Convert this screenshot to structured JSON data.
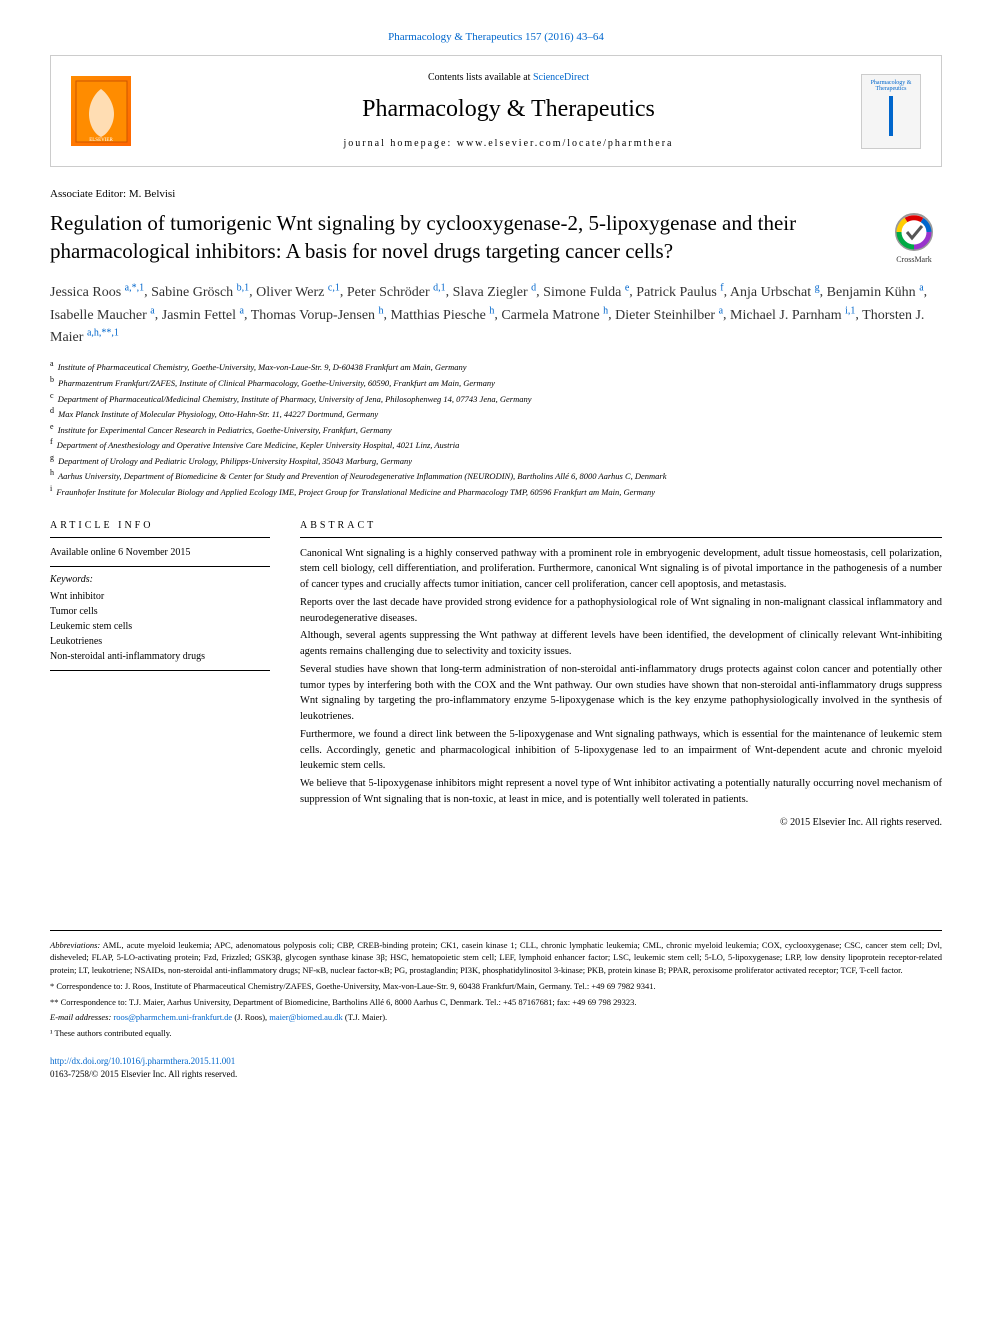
{
  "header": {
    "citation": "Pharmacology & Therapeutics 157 (2016) 43–64",
    "contents_prefix": "Contents lists available at ",
    "contents_link": "ScienceDirect",
    "journal_name": "Pharmacology & Therapeutics",
    "homepage_label": "journal homepage: www.elsevier.com/locate/pharmthera",
    "cover_text": "Pharmacology & Therapeutics"
  },
  "article": {
    "associate_editor": "Associate Editor: M. Belvisi",
    "title": "Regulation of tumorigenic Wnt signaling by cyclooxygenase-2, 5-lipoxygenase and their pharmacological inhibitors: A basis for novel drugs targeting cancer cells?",
    "crossmark_label": "CrossMark"
  },
  "authors": [
    {
      "name": "Jessica Roos",
      "sup": "a,*,1"
    },
    {
      "name": "Sabine Grösch",
      "sup": "b,1"
    },
    {
      "name": "Oliver Werz",
      "sup": "c,1"
    },
    {
      "name": "Peter Schröder",
      "sup": "d,1"
    },
    {
      "name": "Slava Ziegler",
      "sup": "d"
    },
    {
      "name": "Simone Fulda",
      "sup": "e"
    },
    {
      "name": "Patrick Paulus",
      "sup": "f"
    },
    {
      "name": "Anja Urbschat",
      "sup": "g"
    },
    {
      "name": "Benjamin Kühn",
      "sup": "a"
    },
    {
      "name": "Isabelle Maucher",
      "sup": "a"
    },
    {
      "name": "Jasmin Fettel",
      "sup": "a"
    },
    {
      "name": "Thomas Vorup-Jensen",
      "sup": "h"
    },
    {
      "name": "Matthias Piesche",
      "sup": "h"
    },
    {
      "name": "Carmela Matrone",
      "sup": "h"
    },
    {
      "name": "Dieter Steinhilber",
      "sup": "a"
    },
    {
      "name": "Michael J. Parnham",
      "sup": "i,1"
    },
    {
      "name": "Thorsten J. Maier",
      "sup": "a,h,**,1"
    }
  ],
  "affiliations": [
    {
      "key": "a",
      "text": "Institute of Pharmaceutical Chemistry, Goethe-University, Max-von-Laue-Str. 9, D-60438 Frankfurt am Main, Germany"
    },
    {
      "key": "b",
      "text": "Pharmazentrum Frankfurt/ZAFES, Institute of Clinical Pharmacology, Goethe-University, 60590, Frankfurt am Main, Germany"
    },
    {
      "key": "c",
      "text": "Department of Pharmaceutical/Medicinal Chemistry, Institute of Pharmacy, University of Jena, Philosophenweg 14, 07743 Jena, Germany"
    },
    {
      "key": "d",
      "text": "Max Planck Institute of Molecular Physiology, Otto-Hahn-Str. 11, 44227 Dortmund, Germany"
    },
    {
      "key": "e",
      "text": "Institute for Experimental Cancer Research in Pediatrics, Goethe-University, Frankfurt, Germany"
    },
    {
      "key": "f",
      "text": "Department of Anesthesiology and Operative Intensive Care Medicine, Kepler University Hospital, 4021 Linz, Austria"
    },
    {
      "key": "g",
      "text": "Department of Urology and Pediatric Urology, Philipps-University Hospital, 35043 Marburg, Germany"
    },
    {
      "key": "h",
      "text": "Aarhus University, Department of Biomedicine & Center for Study and Prevention of Neurodegenerative Inflammation (NEURODIN), Bartholins Allé 6, 8000 Aarhus C, Denmark"
    },
    {
      "key": "i",
      "text": "Fraunhofer Institute for Molecular Biology and Applied Ecology IME, Project Group for Translational Medicine and Pharmacology TMP, 60596 Frankfurt am Main, Germany"
    }
  ],
  "info": {
    "heading": "ARTICLE INFO",
    "available": "Available online 6 November 2015",
    "keywords_label": "Keywords:",
    "keywords": [
      "Wnt inhibitor",
      "Tumor cells",
      "Leukemic stem cells",
      "Leukotrienes",
      "Non-steroidal anti-inflammatory drugs"
    ]
  },
  "abstract": {
    "heading": "ABSTRACT",
    "paragraphs": [
      "Canonical Wnt signaling is a highly conserved pathway with a prominent role in embryogenic development, adult tissue homeostasis, cell polarization, stem cell biology, cell differentiation, and proliferation. Furthermore, canonical Wnt signaling is of pivotal importance in the pathogenesis of a number of cancer types and crucially affects tumor initiation, cancer cell proliferation, cancer cell apoptosis, and metastasis.",
      "Reports over the last decade have provided strong evidence for a pathophysiological role of Wnt signaling in non-malignant classical inflammatory and neurodegenerative diseases.",
      "Although, several agents suppressing the Wnt pathway at different levels have been identified, the development of clinically relevant Wnt-inhibiting agents remains challenging due to selectivity and toxicity issues.",
      "Several studies have shown that long-term administration of non-steroidal anti-inflammatory drugs protects against colon cancer and potentially other tumor types by interfering both with the COX and the Wnt pathway. Our own studies have shown that non-steroidal anti-inflammatory drugs suppress Wnt signaling by targeting the pro-inflammatory enzyme 5-lipoxygenase which is the key enzyme pathophysiologically involved in the synthesis of leukotrienes.",
      "Furthermore, we found a direct link between the 5-lipoxygenase and Wnt signaling pathways, which is essential for the maintenance of leukemic stem cells. Accordingly, genetic and pharmacological inhibition of 5-lipoxygenase led to an impairment of Wnt-dependent acute and chronic myeloid leukemic stem cells.",
      "We believe that 5-lipoxygenase inhibitors might represent a novel type of Wnt inhibitor activating a potentially naturally occurring novel mechanism of suppression of Wnt signaling that is non-toxic, at least in mice, and is potentially well tolerated in patients."
    ],
    "copyright": "© 2015 Elsevier Inc. All rights reserved."
  },
  "footer": {
    "abbrev_label": "Abbreviations:",
    "abbrev_text": " AML, acute myeloid leukemia; APC, adenomatous polyposis coli; CBP, CREB-binding protein; CK1, casein kinase 1; CLL, chronic lymphatic leukemia; CML, chronic myeloid leukemia; COX, cyclooxygenase; CSC, cancer stem cell; Dvl, disheveled; FLAP, 5-LO-activating protein; Fzd, Frizzled; GSK3β, glycogen synthase kinase 3β; HSC, hematopoietic stem cell; LEF, lymphoid enhancer factor; LSC, leukemic stem cell; 5-LO, 5-lipoxygenase; LRP, low density lipoprotein receptor-related protein; LT, leukotriene; NSAIDs, non-steroidal anti-inflammatory drugs; NF-κB, nuclear factor-κB; PG, prostaglandin; PI3K, phosphatidylinositol 3-kinase; PKB, protein kinase B; PPAR, peroxisome proliferator activated receptor; TCF, T-cell factor.",
    "corr1": "* Correspondence to: J. Roos, Institute of Pharmaceutical Chemistry/ZAFES, Goethe-University, Max-von-Laue-Str. 9, 60438 Frankfurt/Main, Germany. Tel.: +49 69 7982 9341.",
    "corr2": "** Correspondence to: T.J. Maier, Aarhus University, Department of Biomedicine, Bartholins Allé 6, 8000 Aarhus C, Denmark. Tel.: +45 87167681; fax: +49 69 798 29323.",
    "email_label": "E-mail addresses: ",
    "email1": "roos@pharmchem.uni-frankfurt.de",
    "email1_name": " (J. Roos), ",
    "email2": "maier@biomed.au.dk",
    "email2_name": " (T.J. Maier).",
    "contributed": "¹ These authors contributed equally.",
    "doi": "http://dx.doi.org/10.1016/j.pharmthera.2015.11.001",
    "issn": "0163-7258/© 2015 Elsevier Inc. All rights reserved."
  },
  "colors": {
    "link": "#0066cc",
    "text": "#000000",
    "border": "#cccccc"
  }
}
